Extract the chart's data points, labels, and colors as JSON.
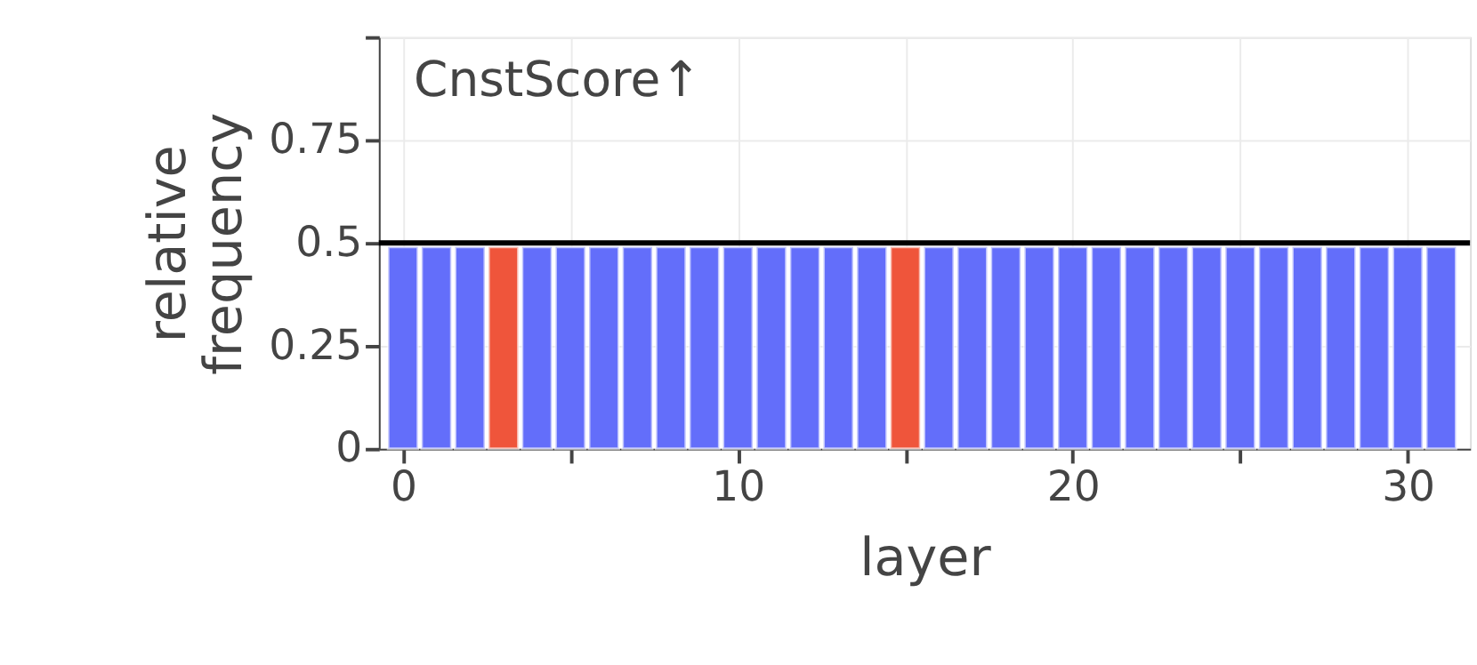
{
  "chart_data": {
    "type": "bar",
    "x": [
      0,
      1,
      2,
      3,
      4,
      5,
      6,
      7,
      8,
      9,
      10,
      11,
      12,
      13,
      14,
      15,
      16,
      17,
      18,
      19,
      20,
      21,
      22,
      23,
      24,
      25,
      26,
      27,
      28,
      29,
      30,
      31
    ],
    "values": [
      0.49,
      0.49,
      0.49,
      0.49,
      0.49,
      0.49,
      0.49,
      0.49,
      0.49,
      0.49,
      0.49,
      0.49,
      0.49,
      0.49,
      0.49,
      0.49,
      0.49,
      0.49,
      0.49,
      0.49,
      0.49,
      0.49,
      0.49,
      0.49,
      0.49,
      0.49,
      0.49,
      0.49,
      0.49,
      0.49,
      0.49,
      0.49
    ],
    "colors": [
      "#636efa",
      "#636efa",
      "#636efa",
      "#ef553b",
      "#636efa",
      "#636efa",
      "#636efa",
      "#636efa",
      "#636efa",
      "#636efa",
      "#636efa",
      "#636efa",
      "#636efa",
      "#636efa",
      "#636efa",
      "#ef553b",
      "#636efa",
      "#636efa",
      "#636efa",
      "#636efa",
      "#636efa",
      "#636efa",
      "#636efa",
      "#636efa",
      "#636efa",
      "#636efa",
      "#636efa",
      "#636efa",
      "#636efa",
      "#636efa",
      "#636efa",
      "#636efa"
    ],
    "xlabel": "layer",
    "ylabel": "relative\nfrequency",
    "xlim": [
      -0.46,
      31.6
    ],
    "ylim": [
      0,
      1
    ],
    "xticks": [
      0,
      {
        "value": 5,
        "label": null
      },
      10,
      {
        "value": 15,
        "label": null
      },
      20,
      {
        "value": 25,
        "label": null
      },
      30
    ],
    "yticks": [
      0,
      0.25,
      0.5,
      0.75,
      {
        "value": 1,
        "label": null
      }
    ],
    "grid": true,
    "ref_lines": [
      {
        "axis": "y",
        "value": 0.5,
        "color": "#000000"
      }
    ],
    "annotations": [
      "CnstScore↑"
    ]
  }
}
